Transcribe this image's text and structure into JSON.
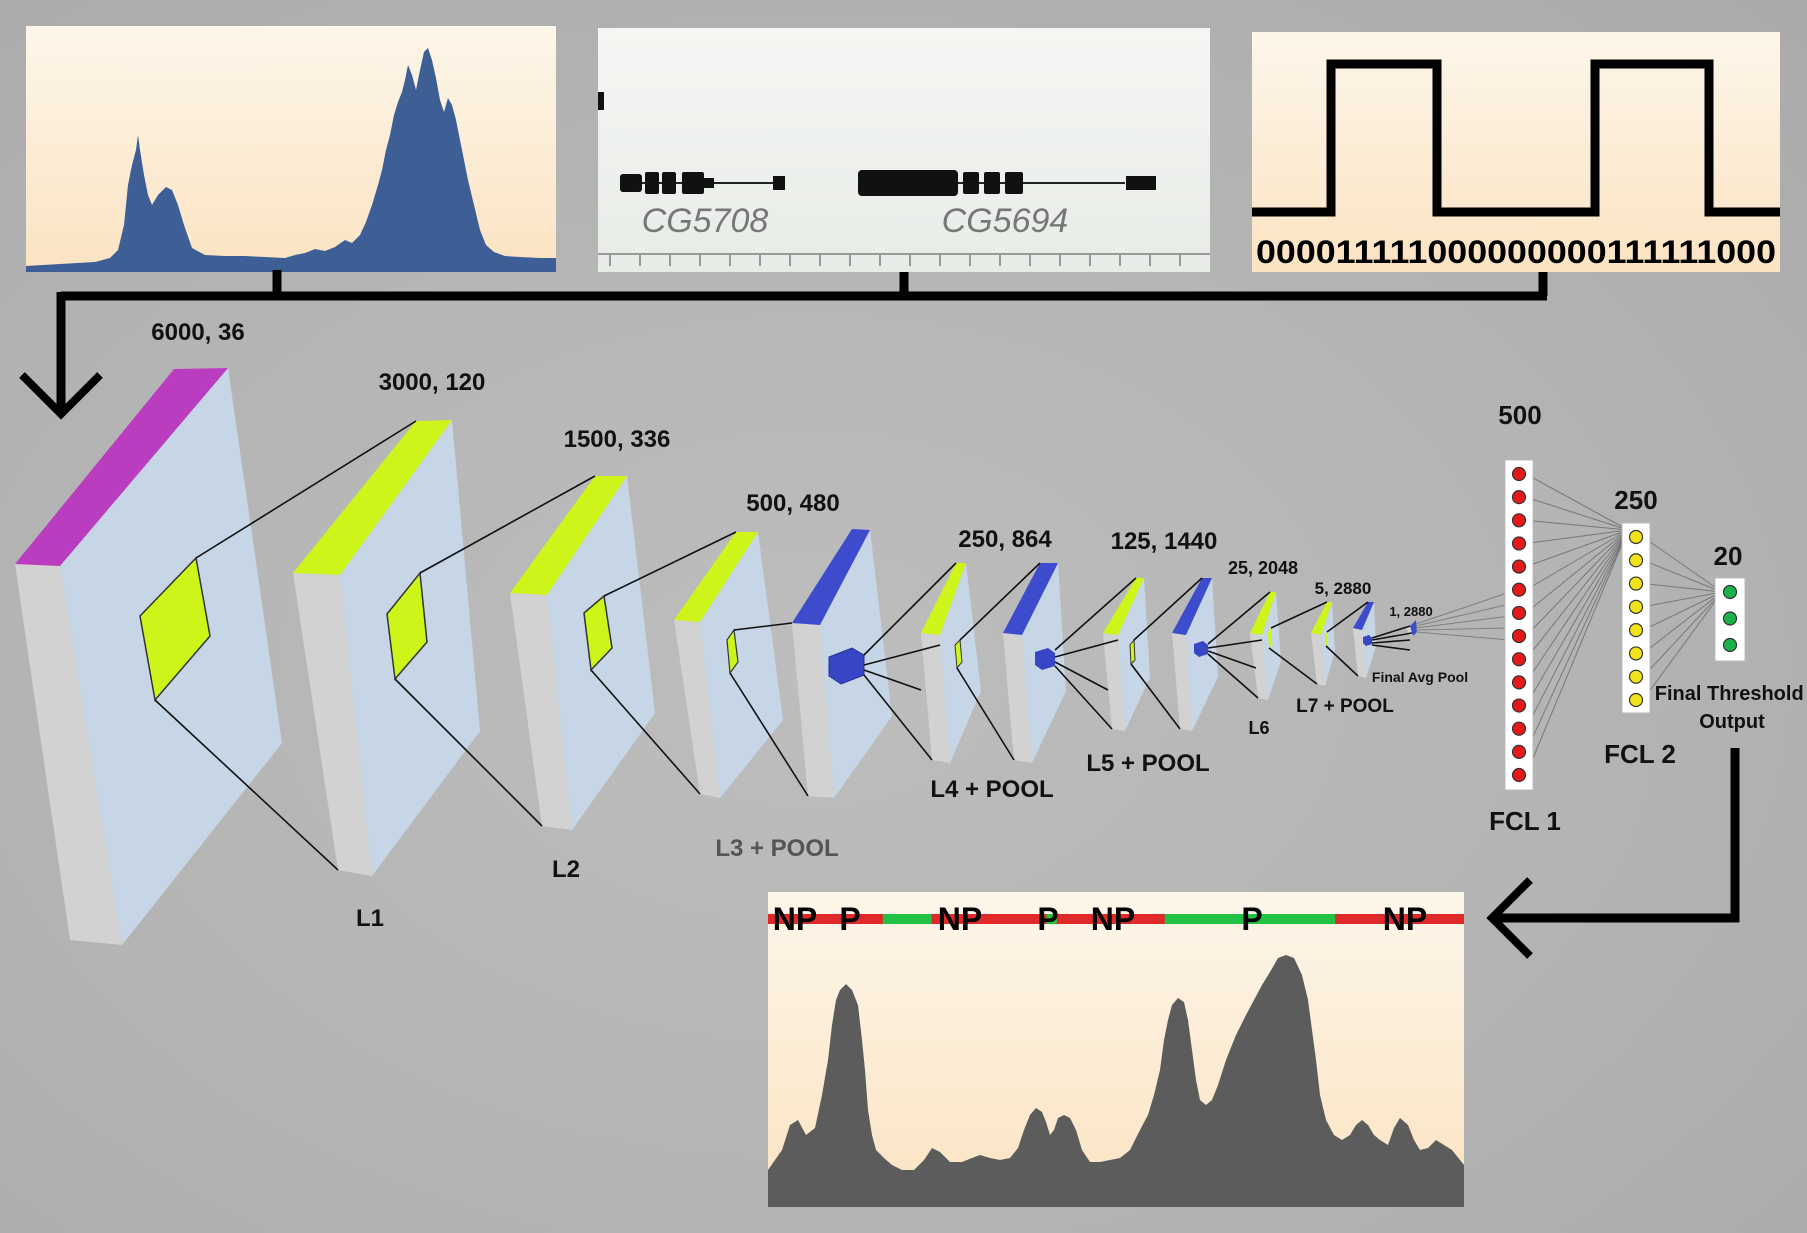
{
  "inputs": {
    "gene_track": {
      "genes": [
        "CG5708",
        "CG5694"
      ]
    },
    "binary_signal": {
      "sequence": "000011111000000000111111000"
    }
  },
  "layers": [
    {
      "id": "L1",
      "dims": "6000, 36",
      "label": ""
    },
    {
      "id": "L2",
      "dims": "3000, 120",
      "label": "L1"
    },
    {
      "id": "L3",
      "dims": "1500, 336",
      "label": "L2"
    },
    {
      "id": "L4",
      "dims": "500, 480",
      "label": "L3 + POOL"
    },
    {
      "id": "L5",
      "dims": "250, 864",
      "label": "L4 + POOL"
    },
    {
      "id": "L6",
      "dims": "125, 1440",
      "label": "L5 + POOL"
    },
    {
      "id": "L7",
      "dims": "25, 2048",
      "label": "L6"
    },
    {
      "id": "L8",
      "dims": "5, 2880",
      "label": "L7 + POOL"
    },
    {
      "id": "L9",
      "dims": "1, 2880",
      "label": "Final Avg Pool"
    }
  ],
  "fully_connected": [
    {
      "name": "FCL 1",
      "size": "500",
      "node_color": "#e41a1a",
      "node_count": 14
    },
    {
      "name": "FCL 2",
      "size": "250",
      "node_color": "#f2e21a",
      "node_count": 8
    },
    {
      "name": "Final Threshold Output",
      "size": "20",
      "node_color": "#19b34a",
      "node_count": 3
    }
  ],
  "output": {
    "segments": [
      {
        "label": "NP",
        "state": "NP",
        "start": 0.0,
        "end": 0.165
      },
      {
        "label": "P",
        "state": "P",
        "start": 0.165,
        "end": 0.165
      },
      {
        "label": "NP",
        "state": "NP",
        "start": 0.165,
        "end": 0.4
      },
      {
        "label": "P",
        "state": "P",
        "start": 0.4,
        "end": 0.4
      },
      {
        "label": "NP",
        "state": "NP",
        "start": 0.4,
        "end": 0.57
      },
      {
        "label": "P",
        "state": "P",
        "start": 0.57,
        "end": 0.815
      },
      {
        "label": "NP",
        "state": "NP",
        "start": 0.815,
        "end": 1.0
      }
    ],
    "colors": {
      "NP": "#e02a2a",
      "P": "#22c244"
    }
  },
  "colors": {
    "conv_face": "#c7d6e6",
    "conv_side": "#d2d2d2",
    "input_top": "#bb3dbf",
    "conv_top": "#cdf51a",
    "pool_top": "#3d4ccc",
    "signal_fill": "#3d5f96",
    "output_fill": "#5c5c5c",
    "panel_bg_top": "#fdf4e5",
    "panel_bg_bottom": "#fbe6c8"
  }
}
